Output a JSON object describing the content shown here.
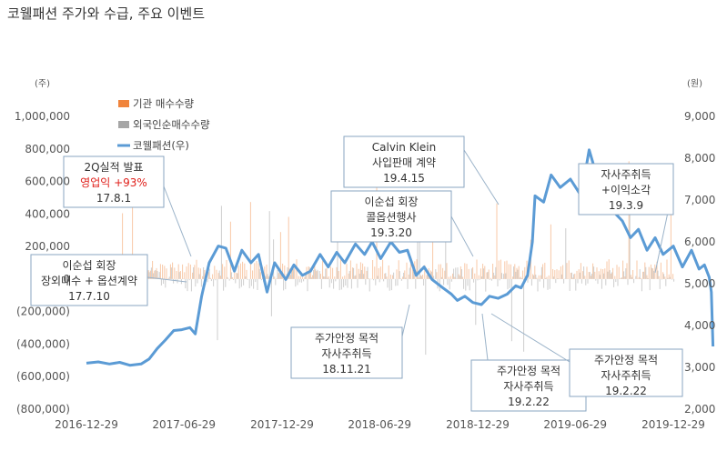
{
  "title": "코웰패션 주가와 수급, 주요 이벤트",
  "chart_data": {
    "type": "line",
    "left_axis": {
      "unit": "(주)",
      "ticks": [
        "1,000,000",
        "800,000",
        "600,000",
        "400,000",
        "200,000",
        "0",
        "(200,000)",
        "(400,000)",
        "(600,000)",
        "(800,000)"
      ],
      "range": [
        -800000,
        1000000
      ]
    },
    "right_axis": {
      "unit": "(원)",
      "ticks": [
        "9,000",
        "8,000",
        "7,000",
        "6,000",
        "5,000",
        "4,000",
        "3,000",
        "2,000"
      ],
      "range": [
        2000,
        9000
      ]
    },
    "x_ticks": [
      "2016-12-29",
      "2017-06-29",
      "2017-12-29",
      "2018-06-29",
      "2018-12-29",
      "2019-06-29",
      "2019-12-29"
    ],
    "legend": [
      {
        "label": "기관 매수수량",
        "color": "#f0843c"
      },
      {
        "label": "외국인순매수수량",
        "color": "#a6a6a6"
      },
      {
        "label": "코웰패션(우)",
        "color": "#5b9bd5"
      }
    ],
    "series": [
      {
        "name": "코웰패션(우)",
        "axis": "right",
        "points": [
          [
            "2016-12-29",
            3100
          ],
          [
            "2017-01-20",
            3130
          ],
          [
            "2017-02-10",
            3080
          ],
          [
            "2017-03-01",
            3120
          ],
          [
            "2017-03-20",
            3050
          ],
          [
            "2017-04-10",
            3080
          ],
          [
            "2017-04-25",
            3200
          ],
          [
            "2017-05-10",
            3450
          ],
          [
            "2017-05-25",
            3650
          ],
          [
            "2017-06-10",
            3880
          ],
          [
            "2017-06-25",
            3900
          ],
          [
            "2017-07-10",
            3950
          ],
          [
            "2017-07-20",
            3800
          ],
          [
            "2017-08-01",
            4700
          ],
          [
            "2017-08-15",
            5500
          ],
          [
            "2017-09-01",
            5900
          ],
          [
            "2017-09-15",
            5850
          ],
          [
            "2017-10-01",
            5300
          ],
          [
            "2017-10-15",
            5800
          ],
          [
            "2017-11-01",
            5500
          ],
          [
            "2017-11-15",
            5700
          ],
          [
            "2017-12-01",
            4800
          ],
          [
            "2017-12-15",
            5500
          ],
          [
            "2018-01-05",
            5100
          ],
          [
            "2018-01-20",
            5450
          ],
          [
            "2018-02-05",
            5200
          ],
          [
            "2018-02-20",
            5300
          ],
          [
            "2018-03-10",
            5700
          ],
          [
            "2018-03-25",
            5400
          ],
          [
            "2018-04-10",
            5750
          ],
          [
            "2018-04-25",
            5500
          ],
          [
            "2018-05-15",
            5950
          ],
          [
            "2018-06-01",
            5700
          ],
          [
            "2018-06-15",
            6000
          ],
          [
            "2018-07-01",
            5600
          ],
          [
            "2018-07-20",
            6000
          ],
          [
            "2018-08-05",
            5750
          ],
          [
            "2018-08-20",
            5800
          ],
          [
            "2018-09-05",
            5200
          ],
          [
            "2018-09-20",
            5400
          ],
          [
            "2018-10-05",
            5100
          ],
          [
            "2018-10-25",
            4900
          ],
          [
            "2018-11-10",
            4750
          ],
          [
            "2018-11-21",
            4600
          ],
          [
            "2018-12-05",
            4700
          ],
          [
            "2018-12-20",
            4550
          ],
          [
            "2019-01-05",
            4500
          ],
          [
            "2019-01-20",
            4700
          ],
          [
            "2019-02-05",
            4650
          ],
          [
            "2019-02-22",
            4750
          ],
          [
            "2019-03-10",
            4950
          ],
          [
            "2019-03-20",
            4900
          ],
          [
            "2019-04-01",
            5200
          ],
          [
            "2019-04-10",
            6000
          ],
          [
            "2019-04-15",
            7100
          ],
          [
            "2019-05-01",
            6950
          ],
          [
            "2019-05-15",
            7600
          ],
          [
            "2019-06-01",
            7300
          ],
          [
            "2019-06-20",
            7500
          ],
          [
            "2019-07-10",
            7100
          ],
          [
            "2019-07-25",
            8200
          ],
          [
            "2019-08-10",
            7500
          ],
          [
            "2019-08-25",
            7200
          ],
          [
            "2019-09-10",
            6700
          ],
          [
            "2019-09-25",
            6500
          ],
          [
            "2019-10-10",
            6100
          ],
          [
            "2019-10-25",
            6300
          ],
          [
            "2019-11-10",
            5800
          ],
          [
            "2019-11-25",
            6100
          ],
          [
            "2019-12-10",
            5700
          ],
          [
            "2019-12-29",
            5900
          ],
          [
            "2020-01-15",
            5400
          ],
          [
            "2020-02-01",
            5800
          ],
          [
            "2020-02-15",
            5350
          ],
          [
            "2020-02-25",
            5450
          ],
          [
            "2020-03-05",
            5150
          ],
          [
            "2020-03-09",
            4800
          ],
          [
            "2020-03-12",
            3500
          ]
        ]
      }
    ],
    "annotations": [
      {
        "lines": [
          "2Q실적 발표",
          "영업익 +93%",
          "17.8.1"
        ],
        "red_line": 1
      },
      {
        "lines": [
          "이순섭 회장",
          "장외매수 + 옵션계약",
          "17.7.10"
        ]
      },
      {
        "lines": [
          "Calvin Klein",
          "사입판매 계약",
          "19.4.15"
        ]
      },
      {
        "lines": [
          "이순섭 회장",
          "콜옵션행사",
          "19.3.20"
        ]
      },
      {
        "lines": [
          "자사주취득",
          "+이익소각",
          "19.3.9"
        ]
      },
      {
        "lines": [
          "주가안정 목적",
          "자사주취득",
          "18.11.21"
        ]
      },
      {
        "lines": [
          "주가안정 목적",
          "자사주취득",
          "19.2.22"
        ]
      },
      {
        "lines": [
          "주가안정 목적",
          "자사주취득",
          "19.2.22"
        ]
      }
    ]
  }
}
